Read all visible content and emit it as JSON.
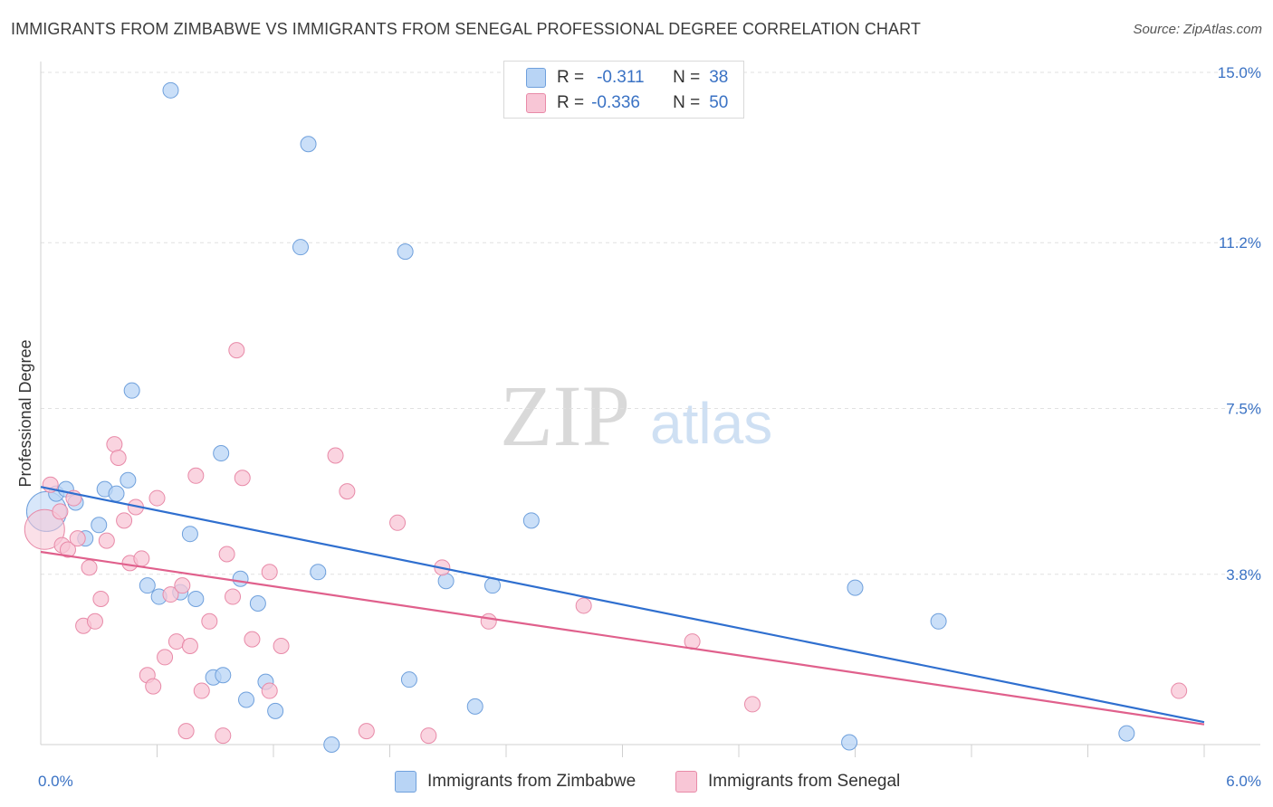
{
  "title": "IMMIGRANTS FROM ZIMBABWE VS IMMIGRANTS FROM SENEGAL PROFESSIONAL DEGREE CORRELATION CHART",
  "source": "Source: ZipAtlas.com",
  "watermark": {
    "zip": "ZIP",
    "atlas": "atlas"
  },
  "legend": {
    "r_label": "R =",
    "n_label": "N =",
    "zimbabwe": {
      "r": "-0.311",
      "n": "38"
    },
    "senegal": {
      "r": "-0.336",
      "n": "50"
    }
  },
  "bottom_legend": {
    "zimbabwe": "Immigrants from Zimbabwe",
    "senegal": "Immigrants from Senegal"
  },
  "colors": {
    "zimbabwe_fill": "#b8d4f5",
    "zimbabwe_stroke": "#6fa0dc",
    "zimbabwe_line": "#2f6fcf",
    "senegal_fill": "#f8c6d6",
    "senegal_stroke": "#e88aa8",
    "senegal_line": "#e0608c",
    "axis_label": "#3a72c4",
    "grid": "#e1e1e1"
  },
  "chart_data": {
    "type": "scatter",
    "xlabel": "",
    "ylabel": "Professional Degree",
    "xlim": [
      0.0,
      6.0
    ],
    "ylim": [
      0.0,
      15.0
    ],
    "x_tick_labels": [
      "0.0%",
      "6.0%"
    ],
    "y_ticks": [
      3.8,
      7.5,
      11.2,
      15.0
    ],
    "y_tick_labels": [
      "3.8%",
      "7.5%",
      "11.2%",
      "15.0%"
    ],
    "series": [
      {
        "name": "Immigrants from Zimbabwe",
        "r": -0.311,
        "n": 38,
        "trend": {
          "x": [
            0.0,
            6.0
          ],
          "y": [
            5.75,
            0.5
          ]
        },
        "points": [
          {
            "x": 0.03,
            "y": 5.2,
            "big": true
          },
          {
            "x": 0.08,
            "y": 5.6
          },
          {
            "x": 0.13,
            "y": 5.7
          },
          {
            "x": 0.18,
            "y": 5.4
          },
          {
            "x": 0.23,
            "y": 4.6
          },
          {
            "x": 0.3,
            "y": 4.9
          },
          {
            "x": 0.33,
            "y": 5.7
          },
          {
            "x": 0.39,
            "y": 5.6
          },
          {
            "x": 0.45,
            "y": 5.9
          },
          {
            "x": 0.47,
            "y": 7.9
          },
          {
            "x": 0.55,
            "y": 3.55
          },
          {
            "x": 0.61,
            "y": 3.3
          },
          {
            "x": 0.67,
            "y": 14.6
          },
          {
            "x": 0.72,
            "y": 3.4
          },
          {
            "x": 0.77,
            "y": 4.7
          },
          {
            "x": 0.8,
            "y": 3.25
          },
          {
            "x": 0.89,
            "y": 1.5
          },
          {
            "x": 0.93,
            "y": 6.5
          },
          {
            "x": 0.94,
            "y": 1.55
          },
          {
            "x": 1.03,
            "y": 3.7
          },
          {
            "x": 1.06,
            "y": 1.0
          },
          {
            "x": 1.12,
            "y": 3.15
          },
          {
            "x": 1.16,
            "y": 1.4
          },
          {
            "x": 1.21,
            "y": 0.75
          },
          {
            "x": 1.34,
            "y": 11.1
          },
          {
            "x": 1.38,
            "y": 13.4
          },
          {
            "x": 1.43,
            "y": 3.85
          },
          {
            "x": 1.5,
            "y": 0.0
          },
          {
            "x": 1.88,
            "y": 11.0
          },
          {
            "x": 1.9,
            "y": 1.45
          },
          {
            "x": 2.09,
            "y": 3.65
          },
          {
            "x": 2.24,
            "y": 0.85
          },
          {
            "x": 2.33,
            "y": 3.55
          },
          {
            "x": 2.53,
            "y": 5.0
          },
          {
            "x": 4.17,
            "y": 0.05
          },
          {
            "x": 4.2,
            "y": 3.5
          },
          {
            "x": 4.63,
            "y": 2.75
          },
          {
            "x": 5.6,
            "y": 0.25
          }
        ]
      },
      {
        "name": "Immigrants from Senegal",
        "r": -0.336,
        "n": 50,
        "trend": {
          "x": [
            0.0,
            6.0
          ],
          "y": [
            4.3,
            0.45
          ]
        },
        "points": [
          {
            "x": 0.02,
            "y": 4.8,
            "big": true
          },
          {
            "x": 0.05,
            "y": 5.8
          },
          {
            "x": 0.1,
            "y": 5.2
          },
          {
            "x": 0.11,
            "y": 4.45
          },
          {
            "x": 0.14,
            "y": 4.35
          },
          {
            "x": 0.17,
            "y": 5.5
          },
          {
            "x": 0.19,
            "y": 4.6
          },
          {
            "x": 0.22,
            "y": 2.65
          },
          {
            "x": 0.25,
            "y": 3.95
          },
          {
            "x": 0.28,
            "y": 2.75
          },
          {
            "x": 0.31,
            "y": 3.25
          },
          {
            "x": 0.34,
            "y": 4.55
          },
          {
            "x": 0.38,
            "y": 6.7
          },
          {
            "x": 0.4,
            "y": 6.4
          },
          {
            "x": 0.43,
            "y": 5.0
          },
          {
            "x": 0.46,
            "y": 4.05
          },
          {
            "x": 0.49,
            "y": 5.3
          },
          {
            "x": 0.52,
            "y": 4.15
          },
          {
            "x": 0.55,
            "y": 1.55
          },
          {
            "x": 0.58,
            "y": 1.3
          },
          {
            "x": 0.6,
            "y": 5.5
          },
          {
            "x": 0.64,
            "y": 1.95
          },
          {
            "x": 0.67,
            "y": 3.35
          },
          {
            "x": 0.7,
            "y": 2.3
          },
          {
            "x": 0.73,
            "y": 3.55
          },
          {
            "x": 0.75,
            "y": 0.3
          },
          {
            "x": 0.77,
            "y": 2.2
          },
          {
            "x": 0.8,
            "y": 6.0
          },
          {
            "x": 0.83,
            "y": 1.2
          },
          {
            "x": 0.87,
            "y": 2.75
          },
          {
            "x": 0.94,
            "y": 0.2
          },
          {
            "x": 0.96,
            "y": 4.25
          },
          {
            "x": 0.99,
            "y": 3.3
          },
          {
            "x": 1.01,
            "y": 8.8
          },
          {
            "x": 1.04,
            "y": 5.95
          },
          {
            "x": 1.09,
            "y": 2.35
          },
          {
            "x": 1.18,
            "y": 1.2
          },
          {
            "x": 1.18,
            "y": 3.85
          },
          {
            "x": 1.24,
            "y": 2.2
          },
          {
            "x": 1.52,
            "y": 6.45
          },
          {
            "x": 1.58,
            "y": 5.65
          },
          {
            "x": 1.68,
            "y": 0.3
          },
          {
            "x": 1.84,
            "y": 4.95
          },
          {
            "x": 2.0,
            "y": 0.2
          },
          {
            "x": 2.07,
            "y": 3.95
          },
          {
            "x": 2.31,
            "y": 2.75
          },
          {
            "x": 2.8,
            "y": 3.1
          },
          {
            "x": 3.36,
            "y": 2.3
          },
          {
            "x": 3.67,
            "y": 0.9
          },
          {
            "x": 5.87,
            "y": 1.2
          }
        ]
      }
    ]
  }
}
